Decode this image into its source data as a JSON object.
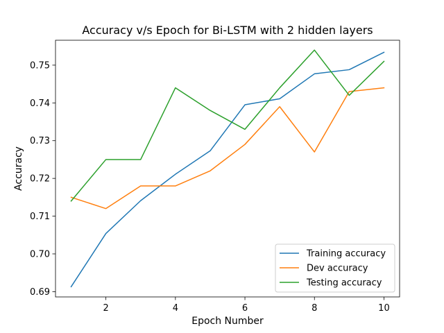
{
  "chart_data": {
    "type": "line",
    "title": "Accuracy v/s Epoch for Bi-LSTM with 2 hidden layers",
    "xlabel": "Epoch Number",
    "ylabel": "Accuracy",
    "x": [
      1,
      2,
      3,
      4,
      5,
      6,
      7,
      8,
      9,
      10
    ],
    "xlim": [
      0.55,
      10.45
    ],
    "ylim": [
      0.6886,
      0.7566
    ],
    "xticks": [
      2,
      4,
      6,
      8,
      10
    ],
    "xtick_labels": [
      "2",
      "4",
      "6",
      "8",
      "10"
    ],
    "yticks": [
      0.69,
      0.7,
      0.71,
      0.72,
      0.73,
      0.74,
      0.75
    ],
    "ytick_labels": [
      "0.69",
      "0.70",
      "0.71",
      "0.72",
      "0.73",
      "0.74",
      "0.75"
    ],
    "grid": false,
    "legend_position": "lower-right",
    "series": [
      {
        "name": "Training accuracy",
        "color": "#1f77b4",
        "values": [
          0.6913,
          0.7054,
          0.7141,
          0.7211,
          0.7273,
          0.7395,
          0.7411,
          0.7477,
          0.7488,
          0.7534
        ]
      },
      {
        "name": "Dev accuracy",
        "color": "#ff7f0e",
        "values": [
          0.715,
          0.712,
          0.718,
          0.718,
          0.722,
          0.729,
          0.739,
          0.727,
          0.743,
          0.744
        ]
      },
      {
        "name": "Testing accuracy",
        "color": "#2ca02c",
        "values": [
          0.714,
          0.725,
          0.725,
          0.744,
          0.738,
          0.733,
          0.744,
          0.754,
          0.742,
          0.751
        ]
      }
    ]
  }
}
